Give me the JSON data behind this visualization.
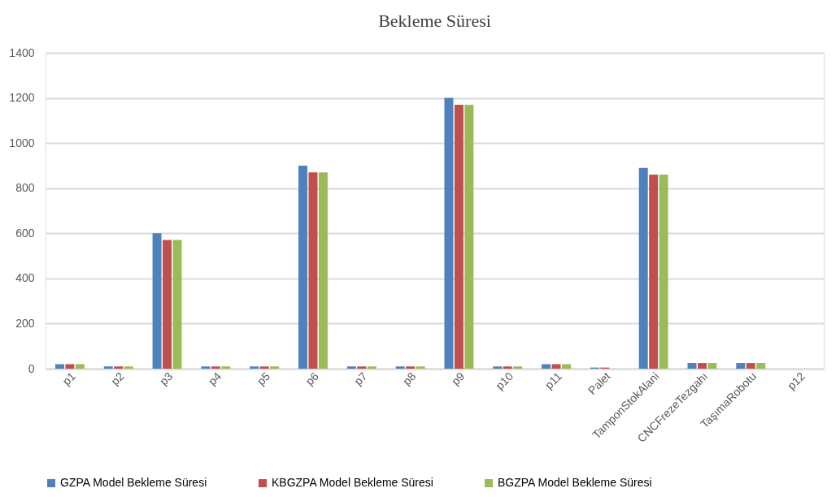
{
  "chart_data": {
    "type": "bar",
    "title": "Bekleme Süresi",
    "categories": [
      "p1",
      "p2",
      "p3",
      "p4",
      "p5",
      "p6",
      "p7",
      "p8",
      "p9",
      "p10",
      "p11",
      "Palet",
      "TamponStokAlani",
      "CNCFrezeTezgahı",
      "TaşımaRobotu",
      "p12"
    ],
    "series": [
      {
        "name": "GZPA Model Bekleme Süresi",
        "color": "#4f81bd",
        "values": [
          20,
          10,
          600,
          10,
          10,
          900,
          10,
          10,
          1200,
          10,
          20,
          5,
          890,
          25,
          25,
          0
        ]
      },
      {
        "name": "KBGZPA Model Bekleme Süresi",
        "color": "#c0504d",
        "values": [
          20,
          10,
          570,
          10,
          10,
          870,
          10,
          10,
          1170,
          10,
          20,
          5,
          860,
          25,
          25,
          0
        ]
      },
      {
        "name": "BGZPA Model Bekleme Süresi",
        "color": "#9bbb59",
        "values": [
          20,
          10,
          570,
          10,
          10,
          870,
          10,
          10,
          1170,
          10,
          20,
          0,
          860,
          25,
          25,
          0
        ]
      }
    ],
    "ylim": [
      0,
      1400
    ],
    "yticks": [
      0,
      200,
      400,
      600,
      800,
      1000,
      1200,
      1400
    ],
    "grid": "y",
    "legend": "bottom"
  }
}
